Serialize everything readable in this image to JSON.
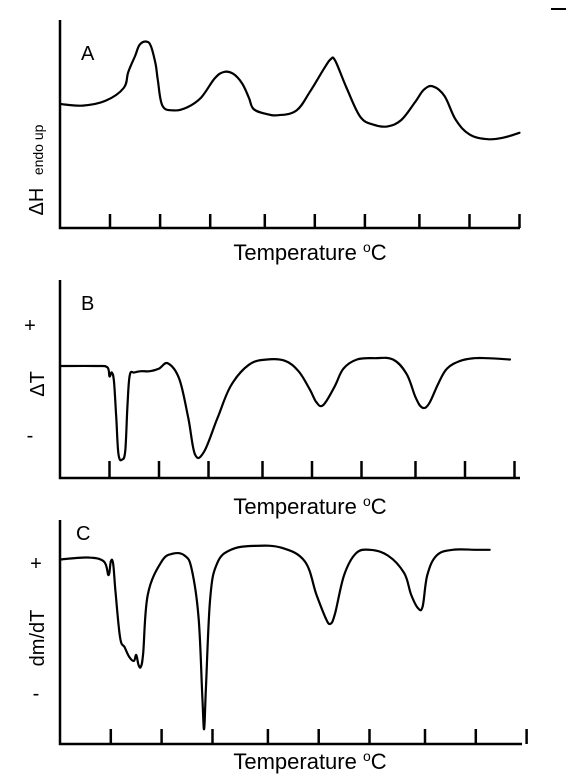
{
  "chart_data": [
    {
      "type": "line",
      "panel": "A",
      "xlabel": "Temperature ",
      "xlabel_unit_sup": "o",
      "xlabel_unit": "C",
      "ylabel": "ΔH",
      "ylabel_sub": "endo up",
      "y_signs": {
        "plus": "",
        "minus": ""
      },
      "xlim": [
        0,
        100
      ],
      "ylim": [
        0,
        100
      ],
      "grid": false,
      "ticks": [
        11,
        22,
        33,
        45,
        56,
        67,
        79,
        90,
        101
      ],
      "series": [
        {
          "x": [
            0,
            5,
            10,
            14,
            15,
            16.5,
            17.5,
            19,
            20,
            21,
            21.5,
            22.5,
            25,
            28,
            31,
            34,
            36,
            38,
            40,
            41.5,
            42.5,
            45,
            48,
            52,
            55,
            58,
            59.5,
            60.5,
            63,
            66,
            69,
            72,
            75,
            78,
            80,
            82,
            84.5,
            87,
            90,
            94,
            97.5,
            101
          ],
          "y": [
            60,
            59,
            62,
            70,
            80,
            90,
            97,
            99,
            96,
            85,
            75,
            59,
            56,
            58,
            64,
            76,
            80,
            79,
            73,
            64,
            57,
            54,
            53,
            56,
            68,
            82,
            88,
            87,
            70,
            52,
            47,
            46,
            50,
            61,
            69,
            71,
            65,
            50,
            41,
            38,
            39,
            42
          ]
        }
      ]
    },
    {
      "type": "line",
      "panel": "B",
      "xlabel": "Temperature ",
      "xlabel_unit_sup": "o",
      "xlabel_unit": "C",
      "ylabel": "ΔT",
      "ylabel_sub": "",
      "y_signs": {
        "plus": "+",
        "minus": "-"
      },
      "xlim": [
        0,
        100
      ],
      "ylim": [
        0,
        100
      ],
      "grid": false,
      "ticks": [
        11,
        22,
        33,
        45,
        56,
        67,
        79,
        90,
        101
      ],
      "series": [
        {
          "x": [
            0,
            8,
            10.5,
            11,
            11.5,
            12,
            12.5,
            13,
            13.8,
            14.5,
            15,
            15.5,
            16.5,
            18,
            20,
            22,
            24,
            26.5,
            28.5,
            30,
            32,
            35,
            38,
            42,
            46,
            50,
            53,
            55.5,
            57,
            58.5,
            61,
            63,
            66,
            70,
            74,
            77,
            79,
            80.5,
            82,
            84,
            86,
            89,
            92,
            95,
            100
          ],
          "y": [
            80,
            80,
            79,
            72,
            75,
            68,
            40,
            12,
            8,
            15,
            50,
            73,
            75,
            76,
            76,
            78,
            82,
            70,
            40,
            12,
            14,
            40,
            65,
            81,
            85,
            84,
            76,
            62,
            52,
            50,
            64,
            78,
            85,
            86,
            85,
            74,
            56,
            48,
            51,
            66,
            78,
            84,
            86,
            86,
            85
          ]
        }
      ]
    },
    {
      "type": "line",
      "panel": "C",
      "xlabel": "Temperature ",
      "xlabel_unit_sup": "o",
      "xlabel_unit": "C",
      "ylabel": "dm/dT",
      "ylabel_sub": "",
      "y_signs": {
        "plus": "+",
        "minus": "-"
      },
      "xlim": [
        0,
        100
      ],
      "ylim": [
        0,
        100
      ],
      "grid": false,
      "ticks": [
        11,
        22,
        33,
        45,
        56,
        67,
        79,
        90,
        101
      ],
      "series": [
        {
          "x": [
            0,
            6,
            9.5,
            10.5,
            11,
            11.5,
            12,
            13,
            14,
            15,
            16,
            16.5,
            17,
            17.5,
            18,
            19,
            22,
            24.5,
            27,
            28.5,
            30,
            30.8,
            31.2,
            31.6,
            32.5,
            34,
            37,
            42,
            48,
            53,
            55.5,
            57.5,
            58.5,
            59.5,
            61.5,
            64,
            67,
            71,
            74.5,
            76,
            77.5,
            78.5,
            79.5,
            81.5,
            85,
            90,
            93
          ],
          "y": [
            90,
            91,
            89,
            82,
            89,
            88,
            74,
            50,
            45,
            40,
            38,
            41,
            36,
            35,
            42,
            72,
            89,
            93,
            92,
            85,
            60,
            20,
            3,
            25,
            70,
            88,
            95,
            97,
            96,
            89,
            72,
            60,
            57,
            62,
            82,
            93,
            95,
            92,
            83,
            72,
            65,
            66,
            82,
            92,
            95,
            95,
            95
          ]
        }
      ]
    }
  ]
}
